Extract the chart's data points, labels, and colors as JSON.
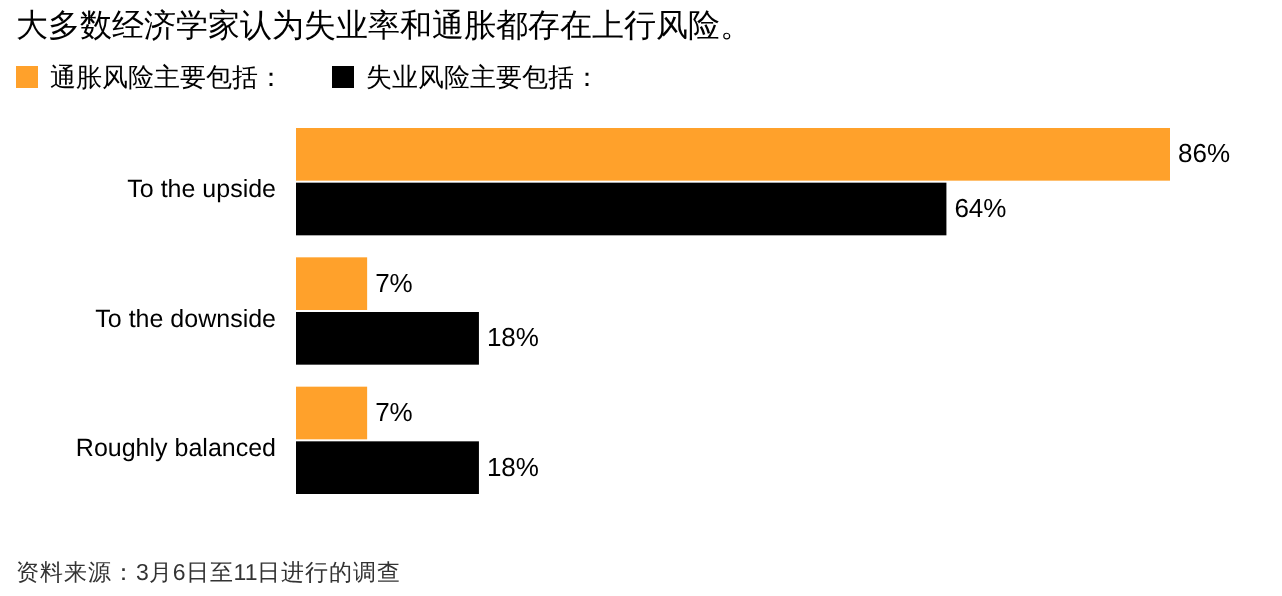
{
  "chart_data": {
    "type": "bar",
    "orientation": "horizontal",
    "title": "大多数经济学家认为失业率和通胀都存在上行风险。",
    "categories": [
      "To the upside",
      "To the downside",
      "Roughly balanced"
    ],
    "series": [
      {
        "name": "通胀风险主要包括：",
        "color": "#ffa12b",
        "values": [
          86,
          7,
          7
        ],
        "value_labels": [
          "86%",
          "7%",
          "7%"
        ]
      },
      {
        "name": "失业风险主要包括：",
        "color": "#000000",
        "values": [
          64,
          18,
          18
        ],
        "value_labels": [
          "64%",
          "18%",
          "18%"
        ]
      }
    ],
    "legend": "top left",
    "annotations": [
      "资料来源：3月6日至11日进行的调查"
    ]
  }
}
